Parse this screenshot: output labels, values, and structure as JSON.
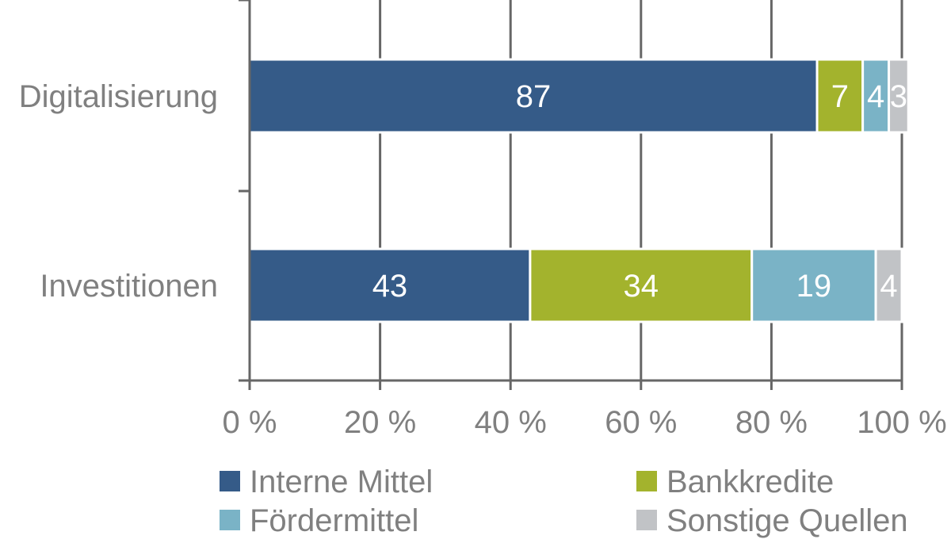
{
  "chart_data": {
    "type": "bar",
    "orientation": "horizontal",
    "stacked": true,
    "categories": [
      "Digitalisierung",
      "Investitionen"
    ],
    "series": [
      {
        "name": "Interne Mittel",
        "values": [
          87,
          43
        ],
        "color": "#355b88"
      },
      {
        "name": "Bankkredite",
        "values": [
          7,
          34
        ],
        "color": "#a3b32d"
      },
      {
        "name": "Fördermittel",
        "values": [
          4,
          19
        ],
        "color": "#7ab3c6"
      },
      {
        "name": "Sonstige Quellen",
        "values": [
          3,
          4
        ],
        "color": "#c1c3c6"
      }
    ],
    "xlim": [
      0,
      100
    ],
    "x_ticks": [
      "0 %",
      "20 %",
      "40 %",
      "60 %",
      "80 %",
      "100 %"
    ],
    "grid": true,
    "legend_position": "bottom",
    "colors": {
      "axis": "#666666",
      "text": "#808080",
      "segment_label": "#ffffff"
    }
  }
}
